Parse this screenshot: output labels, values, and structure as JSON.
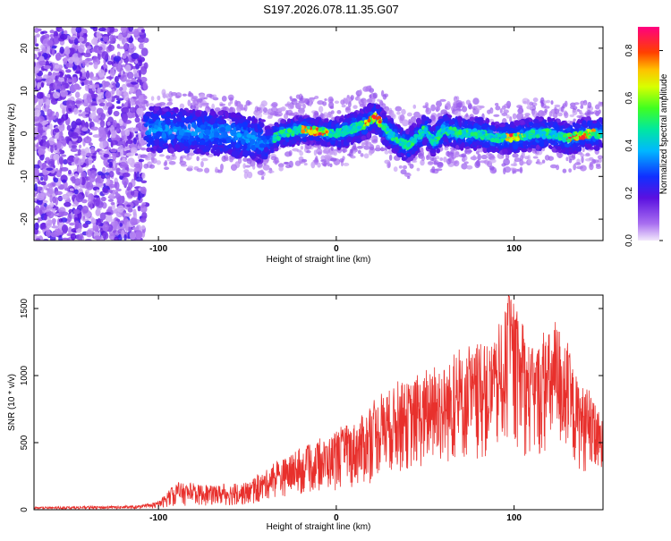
{
  "title": "S197.2026.078.11.35.G07",
  "colors": {
    "snr_line": "#e8302c",
    "axis": "#000000",
    "background": "#ffffff"
  },
  "chart_data": [
    {
      "type": "heatmap",
      "title": "S197.2026.078.11.35.G07",
      "xlabel": "Height of straight line (km)",
      "ylabel": "Frequency (Hz)",
      "xlim": [
        -170,
        150
      ],
      "ylim": [
        -25,
        25
      ],
      "xticks": [
        -100,
        0,
        100
      ],
      "yticks": [
        -20,
        -10,
        0,
        10,
        20
      ],
      "ridge": {
        "description_free_values_hz": [
          {
            "x": -100,
            "y": 1
          },
          {
            "x": -60,
            "y": 0
          },
          {
            "x": -40,
            "y": -2
          },
          {
            "x": -30,
            "y": 0
          },
          {
            "x": -20,
            "y": 1
          },
          {
            "x": 0,
            "y": 0
          },
          {
            "x": 15,
            "y": 2
          },
          {
            "x": 22,
            "y": 4
          },
          {
            "x": 30,
            "y": 0
          },
          {
            "x": 40,
            "y": -3
          },
          {
            "x": 45,
            "y": -1
          },
          {
            "x": 50,
            "y": 1
          },
          {
            "x": 55,
            "y": -2
          },
          {
            "x": 60,
            "y": 1
          },
          {
            "x": 70,
            "y": 0
          },
          {
            "x": 80,
            "y": 0
          },
          {
            "x": 90,
            "y": -1
          },
          {
            "x": 100,
            "y": -1
          },
          {
            "x": 110,
            "y": 0
          },
          {
            "x": 120,
            "y": 0
          },
          {
            "x": 130,
            "y": -1
          },
          {
            "x": 140,
            "y": 0
          },
          {
            "x": 150,
            "y": 0
          }
        ]
      },
      "colorbar": {
        "label": "Normalized spectral amplitude",
        "range": [
          0,
          0.9
        ],
        "ticks": [
          "0.0",
          "0.2",
          "0.4",
          "0.6",
          "0.8"
        ]
      }
    },
    {
      "type": "line",
      "title": "",
      "xlabel": "Height of straight line (km)",
      "ylabel": "SNR (10 * v/v)",
      "xlim": [
        -170,
        150
      ],
      "ylim": [
        0,
        1600
      ],
      "xticks": [
        -100,
        0,
        100
      ],
      "yticks": [
        0,
        500,
        1000,
        1500
      ],
      "envelope": [
        {
          "x": -170,
          "y": 20
        },
        {
          "x": -110,
          "y": 30
        },
        {
          "x": -100,
          "y": 60
        },
        {
          "x": -90,
          "y": 200
        },
        {
          "x": -70,
          "y": 180
        },
        {
          "x": -50,
          "y": 200
        },
        {
          "x": -30,
          "y": 380
        },
        {
          "x": -10,
          "y": 500
        },
        {
          "x": 10,
          "y": 650
        },
        {
          "x": 30,
          "y": 900
        },
        {
          "x": 50,
          "y": 1000
        },
        {
          "x": 70,
          "y": 1150
        },
        {
          "x": 90,
          "y": 1250
        },
        {
          "x": 97,
          "y": 1590
        },
        {
          "x": 110,
          "y": 1200
        },
        {
          "x": 125,
          "y": 1400
        },
        {
          "x": 135,
          "y": 1000
        },
        {
          "x": 140,
          "y": 900
        },
        {
          "x": 150,
          "y": 680
        }
      ]
    }
  ]
}
